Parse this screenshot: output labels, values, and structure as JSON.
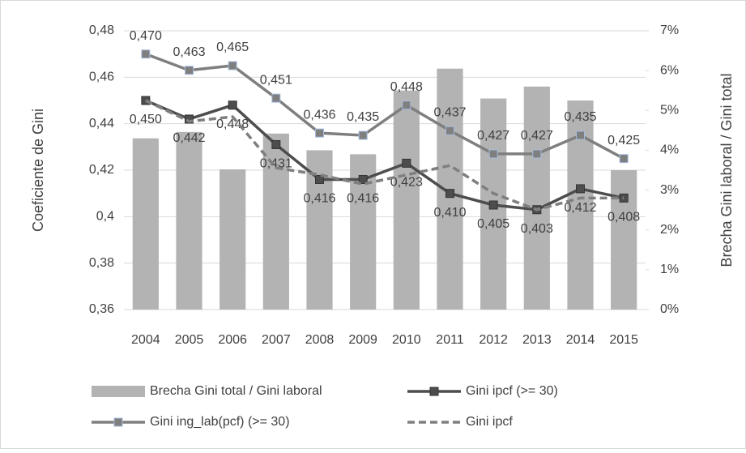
{
  "chart_data": {
    "type": "bar-line",
    "categories": [
      "2004",
      "2005",
      "2006",
      "2007",
      "2008",
      "2009",
      "2010",
      "2011",
      "2012",
      "2013",
      "2014",
      "2015"
    ],
    "y_label": "Coeficiente de Gini",
    "y2_label": "Brecha Gini laboral / Gini total",
    "ylim": [
      0.36,
      0.48
    ],
    "yticks": [
      {
        "value": 0.36,
        "label": "0,36"
      },
      {
        "value": 0.38,
        "label": "0,38"
      },
      {
        "value": 0.4,
        "label": "0,4"
      },
      {
        "value": 0.42,
        "label": "0,42"
      },
      {
        "value": 0.44,
        "label": "0,44"
      },
      {
        "value": 0.46,
        "label": "0,46"
      },
      {
        "value": 0.48,
        "label": "0,48"
      }
    ],
    "y2lim": [
      0,
      7
    ],
    "y2ticks": [
      {
        "value": 0,
        "label": "0%"
      },
      {
        "value": 1,
        "label": "1%"
      },
      {
        "value": 2,
        "label": "2%"
      },
      {
        "value": 3,
        "label": "3%"
      },
      {
        "value": 4,
        "label": "4%"
      },
      {
        "value": 5,
        "label": "5%"
      },
      {
        "value": 6,
        "label": "6%"
      },
      {
        "value": 7,
        "label": "7%"
      }
    ],
    "series": [
      {
        "name": "Brecha Gini total / Gini laboral",
        "kind": "bar",
        "axis": "y2",
        "color": "#b3b3b3",
        "values": [
          4.3,
          4.46,
          3.52,
          4.42,
          4.0,
          3.9,
          5.5,
          6.05,
          5.3,
          5.6,
          5.25,
          3.5
        ]
      },
      {
        "name": "Gini ipcf (>= 30)",
        "kind": "line",
        "color": "#4d4d4d",
        "marker": true,
        "values": [
          0.45,
          0.442,
          0.448,
          0.431,
          0.416,
          0.416,
          0.423,
          0.41,
          0.405,
          0.403,
          0.412,
          0.408
        ],
        "value_labels": [
          "0,450",
          "0,442",
          "0,448",
          "0,431",
          "0,416",
          "0,416",
          "0,423",
          "0,410",
          "0,405",
          "0,403",
          "0,412",
          "0,408"
        ]
      },
      {
        "name": "Gini ing_lab(pcf) (>= 30)",
        "kind": "line",
        "color": "#7f7f7f",
        "marker": true,
        "values": [
          0.47,
          0.463,
          0.465,
          0.451,
          0.436,
          0.435,
          0.448,
          0.437,
          0.427,
          0.427,
          0.435,
          0.425
        ],
        "value_labels": [
          "0,470",
          "0,463",
          "0,465",
          "0,451",
          "0,436",
          "0,435",
          "0,448",
          "0,437",
          "0,427",
          "0,427",
          "0,435",
          "0,425"
        ]
      },
      {
        "name": "Gini ipcf",
        "kind": "line",
        "color": "#7f7f7f",
        "dashed": true,
        "values": [
          0.45,
          0.441,
          0.443,
          0.421,
          0.418,
          0.414,
          0.418,
          0.422,
          0.41,
          0.403,
          0.408,
          0.408
        ]
      }
    ]
  }
}
